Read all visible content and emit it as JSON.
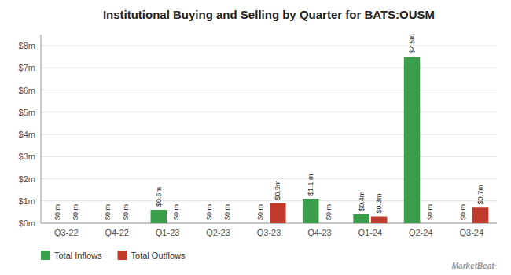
{
  "chart_data": {
    "type": "bar",
    "title": "Institutional Buying and Selling by Quarter for BATS:OUSM",
    "categories": [
      "Q3-22",
      "Q4-22",
      "Q1-23",
      "Q2-23",
      "Q3-23",
      "Q4-23",
      "Q1-24",
      "Q2-24",
      "Q3-24"
    ],
    "series": [
      {
        "name": "Total Inflows",
        "color": "#3a9e4a",
        "values": [
          0.0,
          0.0,
          0.6,
          0.0,
          0.0,
          1.1,
          0.4,
          7.5,
          0.0
        ],
        "value_labels": [
          "$0.m",
          "$0.m",
          "$0.6m",
          "$0.m",
          "$0.m",
          "$1.1 m",
          "$0.4m",
          "$7.5m",
          "$0.m"
        ]
      },
      {
        "name": "Total Outflows",
        "color": "#c0392b",
        "values": [
          0.0,
          0.0,
          0.0,
          0.0,
          0.9,
          0.0,
          0.3,
          0.0,
          0.7
        ],
        "value_labels": [
          "$0.m",
          "$0.m",
          "$0.m",
          "$0.m",
          "$0.9m",
          "$0.m",
          "$0.3m",
          "$0.m",
          "$0.7m"
        ]
      }
    ],
    "ylim": [
      0,
      8.5
    ],
    "yticks": [
      {
        "value": 0,
        "label": "$0m"
      },
      {
        "value": 1,
        "label": "$1m"
      },
      {
        "value": 2,
        "label": "$2m"
      },
      {
        "value": 3,
        "label": "$3m"
      },
      {
        "value": 4,
        "label": "$4m"
      },
      {
        "value": 5,
        "label": "$5m"
      },
      {
        "value": 6,
        "label": "$6m"
      },
      {
        "value": 7,
        "label": "$7m"
      },
      {
        "value": 8,
        "label": "$8m"
      }
    ],
    "grid": true,
    "legend": "bottom",
    "data_labels": true,
    "annotation": "MarketBeat·"
  }
}
